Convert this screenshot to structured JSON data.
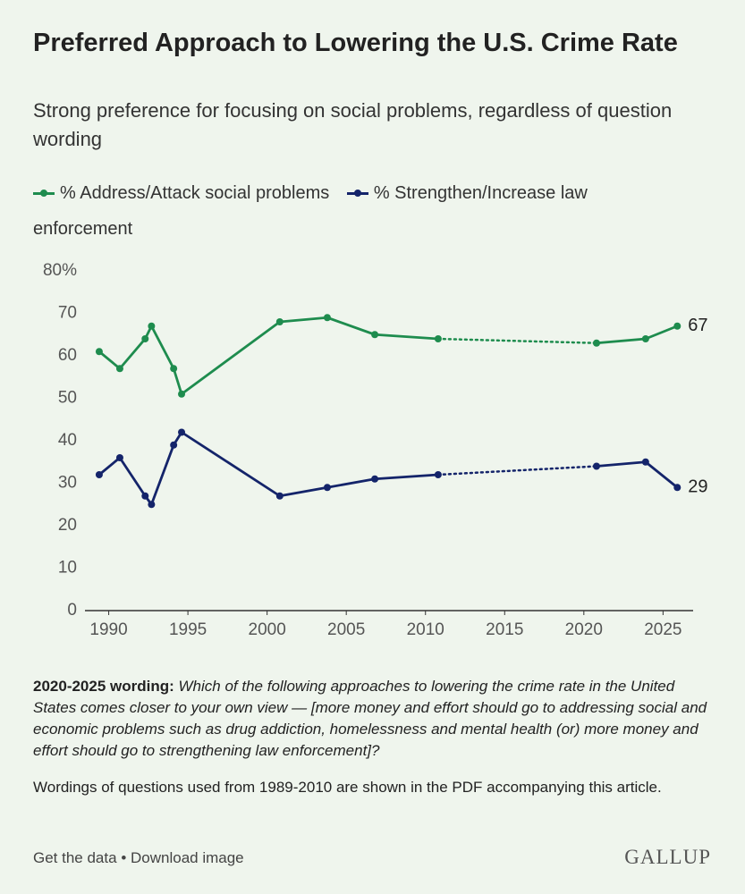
{
  "chart_data": {
    "type": "line",
    "title": "Preferred Approach to Lowering the U.S. Crime Rate",
    "subtitle": "Strong preference for focusing on social problems, regardless of question wording",
    "x": [
      1989.4,
      1990.7,
      1992.3,
      1992.7,
      1994.1,
      1994.6,
      2000.8,
      2003.8,
      2006.8,
      2010.8,
      2020.8,
      2023.9,
      2025.9
    ],
    "series": [
      {
        "name": "% Address/Attack social problems",
        "color": "#1e8c4e",
        "values": [
          61,
          57,
          64,
          67,
          57,
          51,
          68,
          69,
          65,
          64,
          63,
          64,
          67
        ]
      },
      {
        "name": "% Strengthen/Increase law enforcement",
        "color": "#14246a",
        "values": [
          32,
          36,
          27,
          25,
          39,
          42,
          27,
          29,
          31,
          32,
          34,
          35,
          29
        ]
      }
    ],
    "xlim": [
      1988.5,
      2026.9
    ],
    "xticks": [
      1990,
      1995,
      2000,
      2005,
      2010,
      2015,
      2020,
      2025
    ],
    "ylim": [
      0,
      80
    ],
    "yticks": [
      0,
      10,
      20,
      30,
      40,
      50,
      60,
      70,
      {
        "value": 80,
        "label": "80%"
      }
    ],
    "grid": false
  },
  "notes": [
    {
      "bold": "2020-2025 wording:",
      "text": "Which of the following approaches to lowering the crime rate in the United States comes closer to your own view — [more money and effort should go to addressing social and economic problems such as drug addiction, homelessness and mental health (or) more money and effort should go to strengthening law enforcement]?"
    },
    {
      "text": "Wordings of questions used from 1989-2010 are shown in the PDF accompanying this article."
    }
  ],
  "footer": {
    "links": [
      "Get the data",
      "Download image"
    ],
    "separator": "•",
    "brand": "GALLUP"
  }
}
